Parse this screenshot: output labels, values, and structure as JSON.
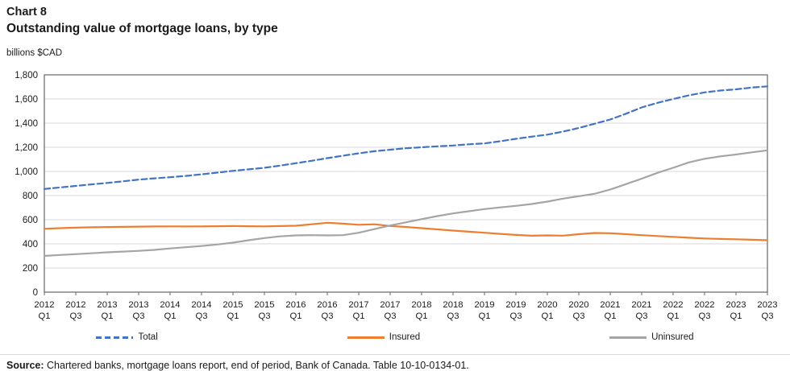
{
  "header": {
    "chart_number": "Chart 8",
    "title": "Outstanding value of mortgage loans, by type",
    "units": "billions $CAD"
  },
  "chart_data": {
    "type": "line",
    "title": "Outstanding value of mortgage loans, by type",
    "ylabel": "billions $CAD",
    "ylim": [
      0,
      1800
    ],
    "y_tick_step": 200,
    "y_tick_labels": [
      "0",
      "200",
      "400",
      "600",
      "800",
      "1,000",
      "1,200",
      "1,400",
      "1,600",
      "1,800"
    ],
    "grid": "horizontal",
    "legend_position": "bottom",
    "x_frequency": "quarterly",
    "x_range": [
      "2012 Q1",
      "2023 Q3"
    ],
    "x_tick_labels": [
      [
        "2012",
        "Q1"
      ],
      [
        "2012",
        "Q3"
      ],
      [
        "2013",
        "Q1"
      ],
      [
        "2013",
        "Q3"
      ],
      [
        "2014",
        "Q1"
      ],
      [
        "2014",
        "Q3"
      ],
      [
        "2015",
        "Q1"
      ],
      [
        "2015",
        "Q3"
      ],
      [
        "2016",
        "Q1"
      ],
      [
        "2016",
        "Q3"
      ],
      [
        "2017",
        "Q1"
      ],
      [
        "2017",
        "Q3"
      ],
      [
        "2018",
        "Q1"
      ],
      [
        "2018",
        "Q3"
      ],
      [
        "2019",
        "Q1"
      ],
      [
        "2019",
        "Q3"
      ],
      [
        "2020",
        "Q1"
      ],
      [
        "2020",
        "Q3"
      ],
      [
        "2021",
        "Q1"
      ],
      [
        "2021",
        "Q3"
      ],
      [
        "2022",
        "Q1"
      ],
      [
        "2022",
        "Q3"
      ],
      [
        "2023",
        "Q1"
      ],
      [
        "2023",
        "Q3"
      ]
    ],
    "series": [
      {
        "name": "Total",
        "color": "#4472C4",
        "style": "dashed",
        "values": [
          855,
          867,
          880,
          893,
          905,
          918,
          932,
          943,
          952,
          963,
          976,
          990,
          1005,
          1017,
          1030,
          1048,
          1068,
          1088,
          1110,
          1130,
          1150,
          1167,
          1180,
          1192,
          1200,
          1208,
          1215,
          1225,
          1232,
          1250,
          1270,
          1288,
          1305,
          1330,
          1360,
          1395,
          1430,
          1478,
          1530,
          1568,
          1600,
          1630,
          1655,
          1670,
          1680,
          1695,
          1705
        ]
      },
      {
        "name": "Insured",
        "color": "#ED7D31",
        "style": "solid",
        "values": [
          525,
          530,
          534,
          537,
          539,
          541,
          543,
          544,
          545,
          544,
          545,
          546,
          547,
          546,
          545,
          547,
          550,
          562,
          575,
          567,
          558,
          562,
          548,
          540,
          530,
          520,
          510,
          501,
          492,
          483,
          474,
          467,
          470,
          468,
          480,
          490,
          488,
          480,
          472,
          465,
          458,
          451,
          445,
          441,
          438,
          434,
          430
        ]
      },
      {
        "name": "Uninsured",
        "color": "#A5A5A5",
        "style": "solid",
        "values": [
          300,
          308,
          315,
          322,
          330,
          336,
          342,
          350,
          362,
          372,
          382,
          395,
          410,
          430,
          448,
          462,
          470,
          472,
          470,
          472,
          492,
          522,
          552,
          578,
          605,
          630,
          652,
          670,
          688,
          702,
          715,
          730,
          750,
          775,
          795,
          815,
          850,
          895,
          940,
          988,
          1030,
          1075,
          1105,
          1125,
          1140,
          1158,
          1175
        ]
      }
    ]
  },
  "footer": {
    "source_label": "Source:",
    "source_text": " Chartered banks, mortgage loans report, end of period, Bank of Canada. Table 10-10-0134-01."
  }
}
